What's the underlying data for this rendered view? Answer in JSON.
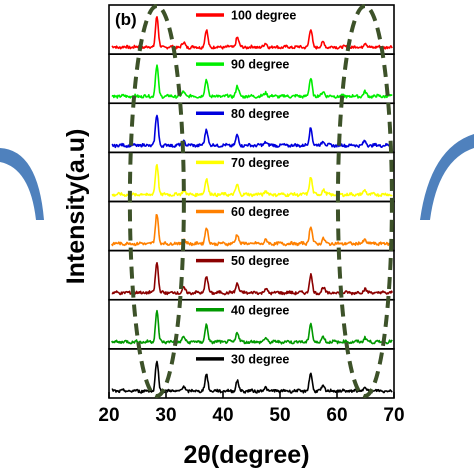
{
  "chart_data": {
    "type": "line",
    "panel_label": "(b)",
    "xlabel": "2θ(degree)",
    "ylabel": "Intensity(a.u)",
    "xlim": [
      20,
      70
    ],
    "x_ticks": [
      20,
      30,
      40,
      50,
      60,
      70
    ],
    "y_ticks": "none",
    "stacked": true,
    "grid": false,
    "legend_placement": "inside each panel, top-center",
    "peaks_2theta": [
      28.4,
      33.1,
      37.1,
      42.5,
      47.5,
      55.4,
      57.6,
      64.9
    ],
    "peak_relative_heights": [
      1.0,
      0.15,
      0.55,
      0.32,
      0.12,
      0.58,
      0.16,
      0.14
    ],
    "series": [
      {
        "name": "100 degree",
        "color": "#ff0000"
      },
      {
        "name": "90 degree",
        "color": "#00ee00"
      },
      {
        "name": "80 degree",
        "color": "#0000dd"
      },
      {
        "name": "70 degree",
        "color": "#ffff00"
      },
      {
        "name": "60 degree",
        "color": "#ff8000"
      },
      {
        "name": "50 degree",
        "color": "#8b0000"
      },
      {
        "name": "40 degree",
        "color": "#009900"
      },
      {
        "name": "30 degree",
        "color": "#000000"
      }
    ],
    "annotations": [
      {
        "type": "dashed-ellipse",
        "center_2theta": 28.4,
        "color": "#3d5229"
      },
      {
        "type": "dashed-ellipse",
        "center_2theta": 64.9,
        "color": "#3d5229"
      }
    ],
    "decorations": [
      {
        "type": "arc",
        "side": "left",
        "color": "#4f81bd"
      },
      {
        "type": "arc",
        "side": "right",
        "color": "#4f81bd"
      }
    ]
  }
}
